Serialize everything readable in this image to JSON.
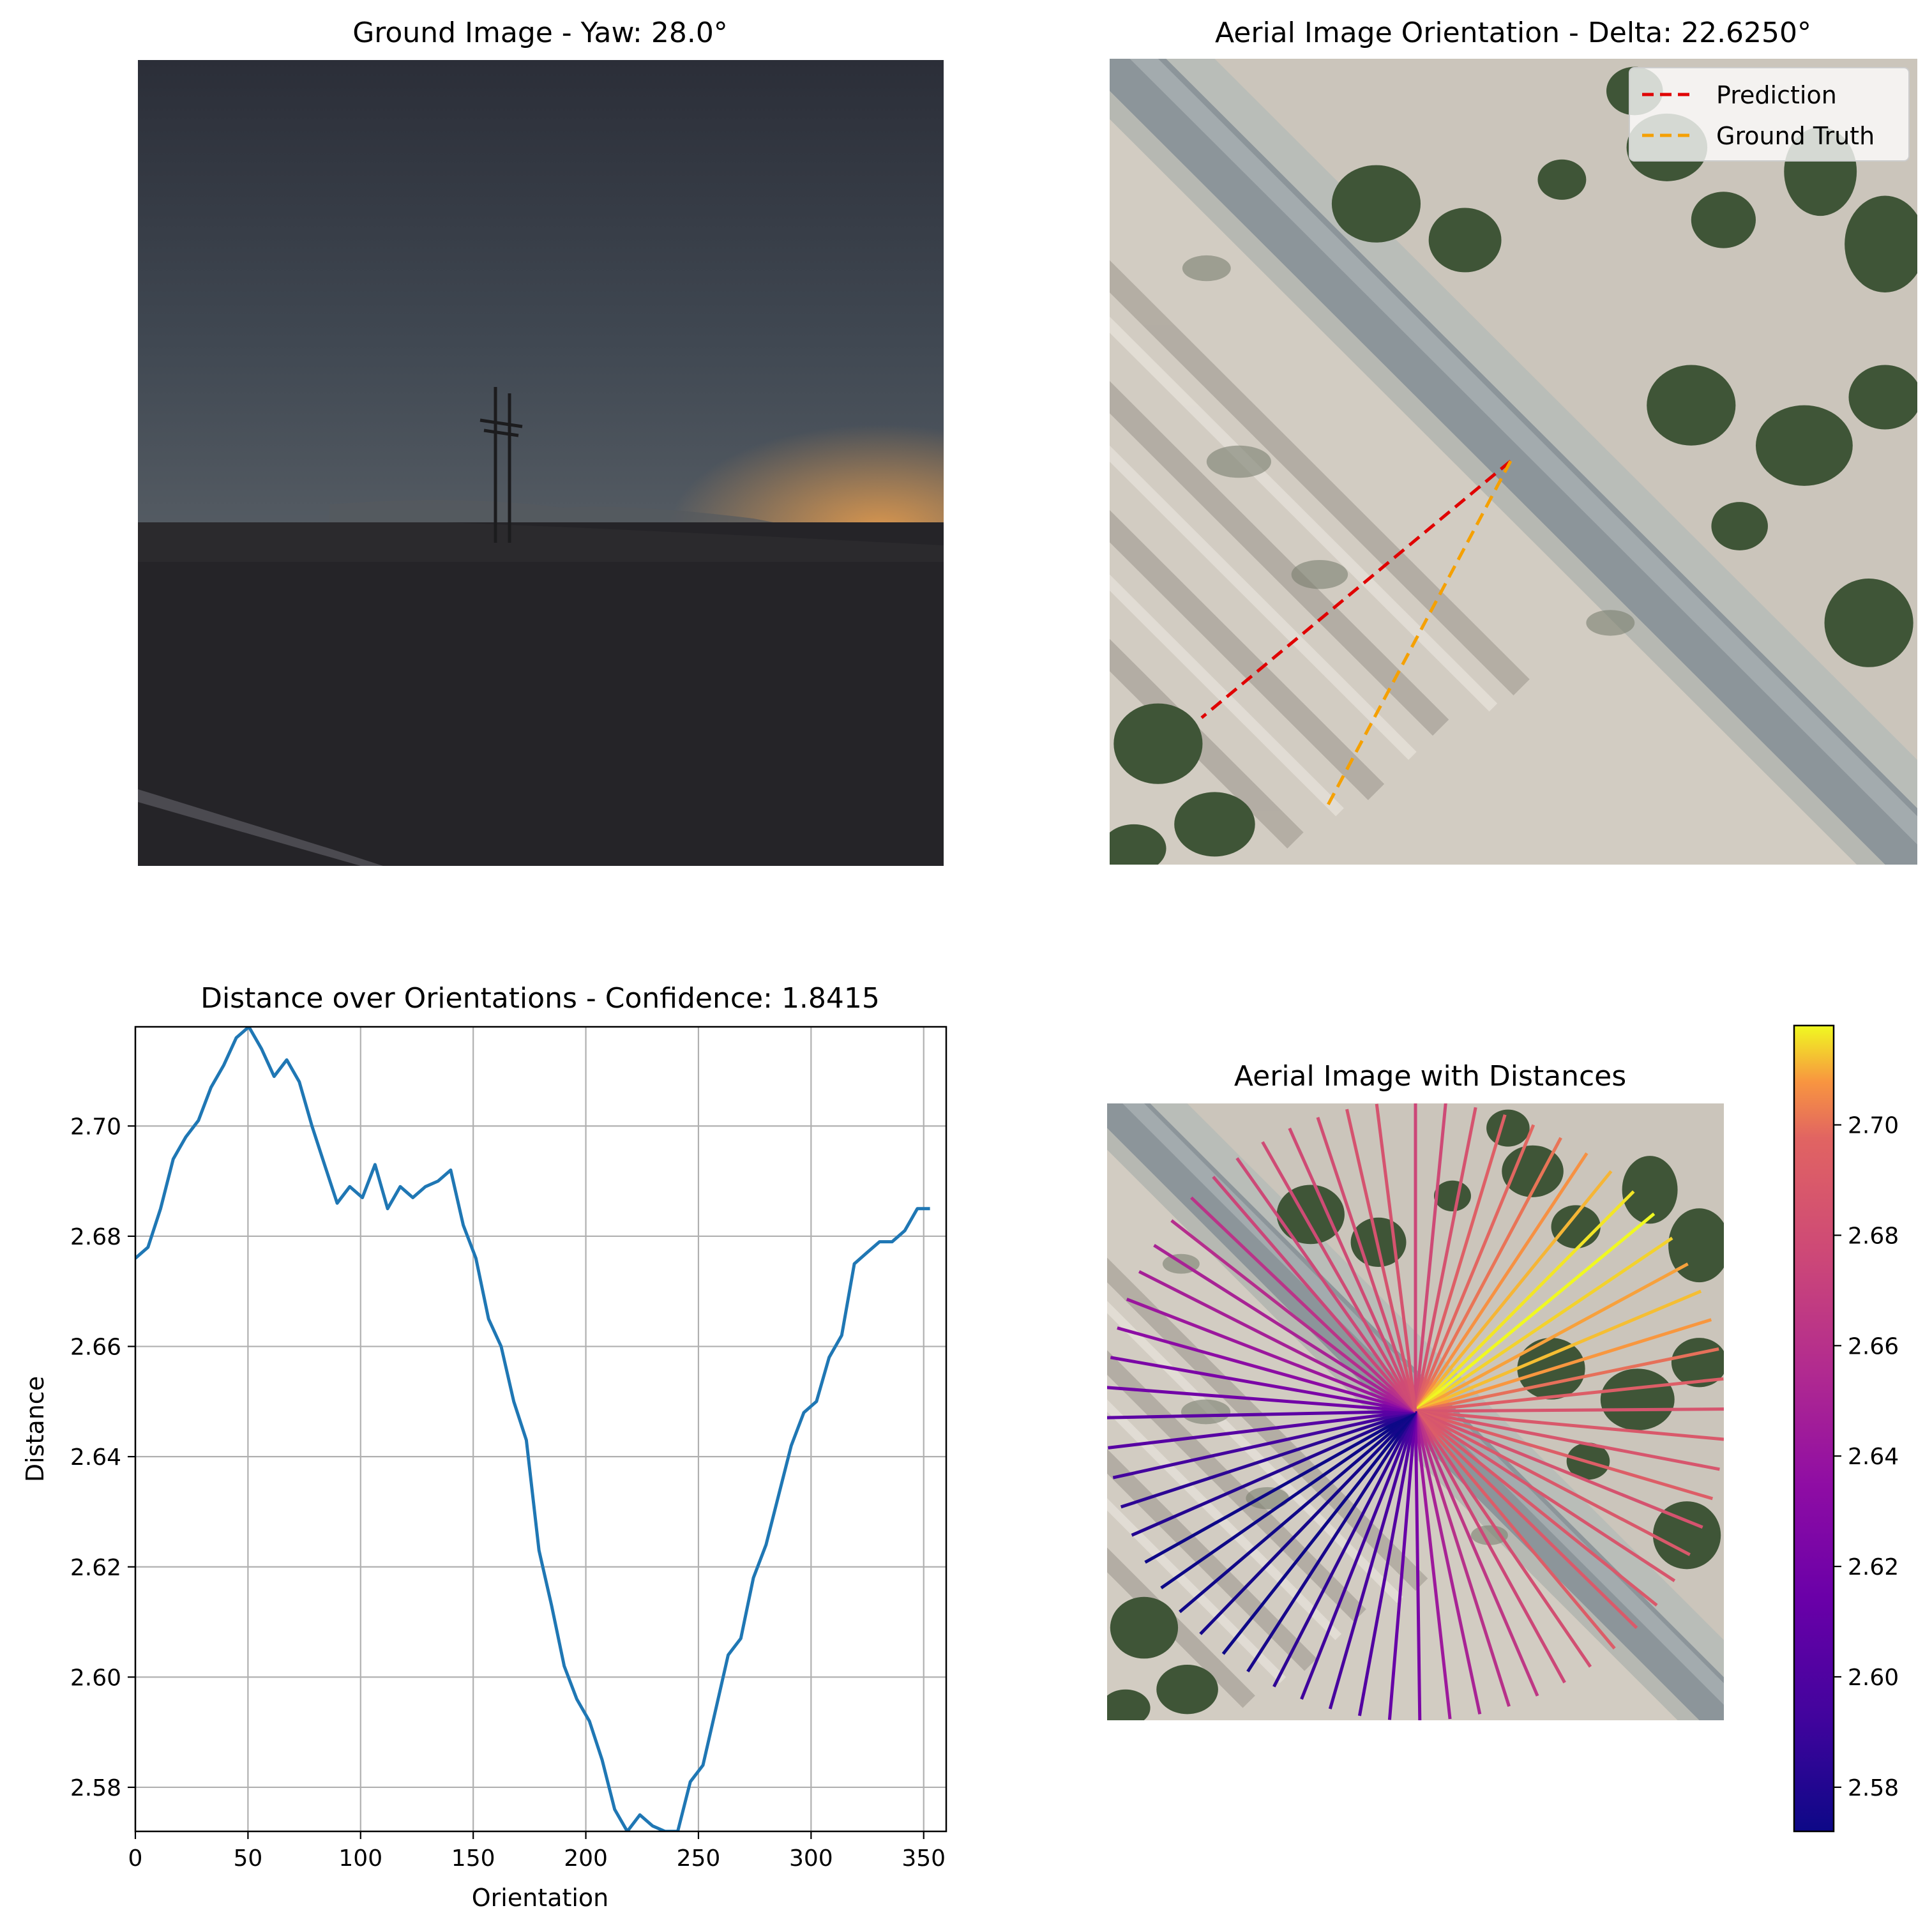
{
  "chart_data": [
    {
      "type": "image",
      "title": "Ground Image - Yaw: 28.0°",
      "scene": "dusk-landscape-with-power-pole"
    },
    {
      "type": "image",
      "title": "Aerial Image Orientation - Delta: 22.6250°",
      "scene": "aerial-road-with-shrubs",
      "legend": {
        "position": "top-right",
        "entries": [
          {
            "label": "Prediction",
            "color": "#e00000",
            "style": "dashed"
          },
          {
            "label": "Ground Truth",
            "color": "#f5a000",
            "style": "dashed"
          }
        ]
      }
    },
    {
      "type": "line",
      "title": "Distance over Orientations - Confidence: 1.8415",
      "xlabel": "Orientation",
      "ylabel": "Distance",
      "xlim": [
        0,
        360
      ],
      "ylim": [
        2.572,
        2.718
      ],
      "xticks": [
        "0",
        "50",
        "100",
        "150",
        "200",
        "250",
        "300",
        "350"
      ],
      "yticks": [
        "2.58",
        "2.60",
        "2.62",
        "2.64",
        "2.66",
        "2.68",
        "2.70"
      ],
      "grid": true,
      "color": "#1f77b4",
      "x": [
        0,
        5.6,
        11.2,
        16.8,
        22.4,
        28,
        33.6,
        39.2,
        44.8,
        50.4,
        56,
        61.6,
        67.2,
        72.8,
        78.4,
        84,
        89.6,
        95.2,
        100.8,
        106.4,
        112,
        117.6,
        123.2,
        128.8,
        134.4,
        140,
        145.6,
        151.2,
        156.8,
        162.4,
        168,
        173.6,
        179.2,
        184.8,
        190.4,
        196,
        201.6,
        207.2,
        212.8,
        218.4,
        224,
        229.6,
        235.2,
        240.8,
        246.4,
        252,
        257.6,
        263.2,
        268.8,
        274.4,
        280,
        285.6,
        291.2,
        296.8,
        302.4,
        308,
        313.6,
        319.2,
        324.8,
        330.4,
        336,
        341.6,
        347.2,
        352.8
      ],
      "y": [
        2.676,
        2.678,
        2.685,
        2.694,
        2.698,
        2.701,
        2.707,
        2.711,
        2.716,
        2.718,
        2.714,
        2.709,
        2.712,
        2.708,
        2.7,
        2.693,
        2.686,
        2.689,
        2.687,
        2.693,
        2.685,
        2.689,
        2.687,
        2.689,
        2.69,
        2.692,
        2.682,
        2.676,
        2.665,
        2.66,
        2.65,
        2.643,
        2.623,
        2.613,
        2.602,
        2.596,
        2.592,
        2.585,
        2.576,
        2.572,
        2.575,
        2.573,
        2.572,
        2.572,
        2.581,
        2.584,
        2.594,
        2.604,
        2.607,
        2.618,
        2.624,
        2.633,
        2.642,
        2.648,
        2.65,
        2.658,
        2.662,
        2.675,
        2.677,
        2.679,
        2.679,
        2.681,
        2.685,
        2.685
      ]
    },
    {
      "type": "image",
      "title": "Aerial Image with Distances",
      "scene": "aerial-road-with-shrubs",
      "overlay": "radial-lines-colored-by-distance",
      "colormap": "plasma",
      "colorbar": {
        "range": [
          2.572,
          2.718
        ],
        "ticks": [
          "2.58",
          "2.60",
          "2.62",
          "2.64",
          "2.66",
          "2.68",
          "2.70"
        ]
      }
    }
  ]
}
